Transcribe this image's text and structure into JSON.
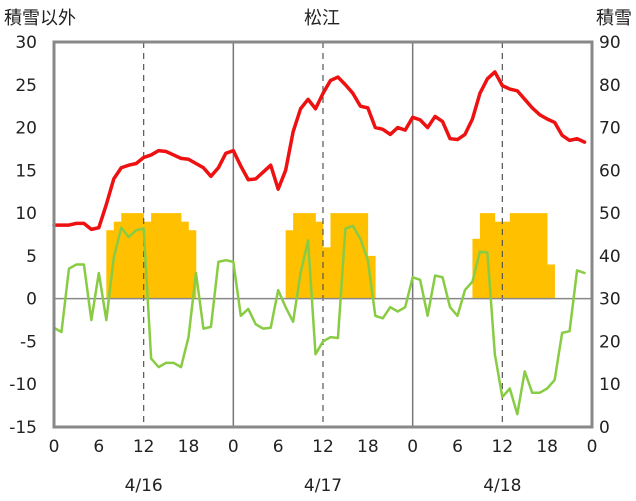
{
  "chart_data": {
    "type": "combo",
    "title": "松江",
    "left_axis_label": "積雪以外",
    "right_axis_label": "積雪",
    "left_ylim": [
      -15,
      30
    ],
    "left_ticks": [
      "30",
      "25",
      "20",
      "15",
      "10",
      "5",
      "0",
      "-5",
      "-10",
      "-15"
    ],
    "right_ylim": [
      0,
      90
    ],
    "right_ticks": [
      "90",
      "80",
      "70",
      "60",
      "50",
      "40",
      "30",
      "20",
      "10",
      "0"
    ],
    "x_hour_ticks": [
      "0",
      "6",
      "12",
      "18",
      "0",
      "6",
      "12",
      "18",
      "0",
      "6",
      "12",
      "18",
      "0"
    ],
    "day_labels": [
      "4/16",
      "4/17",
      "4/18"
    ],
    "grid": "dashed vertical at 12h, solid vertical at day boundaries",
    "colors": {
      "temperature": "#ee1111",
      "other": "#88cc44",
      "snow": "#ffc000",
      "baseline": "#7030a0",
      "frame": "#888888"
    },
    "series": [
      {
        "type": "line",
        "axis": "left",
        "color": "#ee1111",
        "x": [
          0,
          1,
          2,
          3,
          4,
          5,
          6,
          7,
          8,
          9,
          10,
          11,
          12,
          13,
          14,
          15,
          16,
          17,
          18,
          19,
          20,
          21,
          22,
          23,
          24,
          25,
          26,
          27,
          28,
          29,
          30,
          31,
          32,
          33,
          34,
          35,
          36,
          37,
          38,
          39,
          40,
          41,
          42,
          43,
          44,
          45,
          46,
          47,
          48,
          49,
          50,
          51,
          52,
          53,
          54,
          55,
          56,
          57,
          58,
          59,
          60,
          61,
          62,
          63,
          64,
          65,
          66,
          67,
          68,
          69,
          70,
          71
        ],
        "values": [
          8.6,
          8.6,
          8.6,
          8.8,
          8.8,
          8.1,
          8.3,
          11.0,
          14.0,
          15.3,
          15.6,
          15.8,
          16.5,
          16.8,
          17.3,
          17.2,
          16.8,
          16.4,
          16.3,
          15.8,
          15.3,
          14.3,
          15.3,
          17.0,
          17.3,
          15.5,
          13.9,
          14.0,
          14.8,
          15.6,
          12.8,
          15.0,
          19.5,
          22.2,
          23.3,
          22.2,
          24.0,
          25.5,
          25.9,
          25.0,
          24.0,
          22.5,
          22.3,
          20.0,
          19.8,
          19.2,
          20.0,
          19.7,
          21.2,
          20.9,
          20.0,
          21.3,
          20.7,
          18.7,
          18.6,
          19.2,
          21.0,
          24.0,
          25.7,
          26.5,
          24.9,
          24.5,
          24.3,
          23.3,
          22.3,
          21.5,
          21.0,
          20.6,
          19.1,
          18.5,
          18.7,
          18.3
        ]
      },
      {
        "type": "line",
        "axis": "left",
        "color": "#88cc44",
        "x": [
          0,
          1,
          2,
          3,
          4,
          5,
          6,
          7,
          8,
          9,
          10,
          11,
          12,
          13,
          14,
          15,
          16,
          17,
          18,
          19,
          20,
          21,
          22,
          23,
          24,
          25,
          26,
          27,
          28,
          29,
          30,
          31,
          32,
          33,
          34,
          35,
          36,
          37,
          38,
          39,
          40,
          41,
          42,
          43,
          44,
          45,
          46,
          47,
          48,
          49,
          50,
          51,
          52,
          53,
          54,
          55,
          56,
          57,
          58,
          59,
          60,
          61,
          62,
          63,
          64,
          65,
          66,
          67,
          68,
          69,
          70,
          71
        ],
        "values": [
          -3.4,
          -3.9,
          3.5,
          4.0,
          4.0,
          -2.5,
          3.0,
          -2.5,
          4.8,
          8.3,
          7.2,
          8.0,
          8.2,
          -7.0,
          -8.0,
          -7.5,
          -7.5,
          -8.0,
          -4.5,
          3.0,
          -3.5,
          -3.3,
          4.3,
          4.5,
          4.3,
          -2.0,
          -1.2,
          -3.0,
          -3.5,
          -3.4,
          1.0,
          -1.0,
          -2.7,
          3.0,
          6.8,
          -6.5,
          -5.0,
          -4.5,
          -4.6,
          8.2,
          8.5,
          7.0,
          4.5,
          -2.0,
          -2.3,
          -1.0,
          -1.5,
          -1.0,
          2.5,
          2.2,
          -2.0,
          2.7,
          2.5,
          -1.0,
          -2.0,
          1.0,
          2.0,
          5.5,
          5.4,
          -6.5,
          -11.5,
          -10.5,
          -13.5,
          -8.5,
          -11.0,
          -11.0,
          -10.5,
          -9.5,
          -4.0,
          -3.8,
          3.3,
          3.0
        ]
      },
      {
        "type": "bar",
        "axis": "right",
        "color": "#ffc000",
        "x": [
          7,
          8,
          9,
          10,
          11,
          12,
          13,
          14,
          15,
          16,
          17,
          18,
          31,
          32,
          33,
          34,
          35,
          36,
          37,
          38,
          39,
          40,
          41,
          42,
          56,
          57,
          58,
          59,
          60,
          61,
          62,
          63,
          64,
          65,
          66
        ],
        "values": [
          46,
          48,
          50,
          50,
          50,
          48,
          50,
          50,
          50,
          50,
          48,
          46,
          46,
          50,
          50,
          50,
          48,
          42,
          50,
          50,
          50,
          50,
          50,
          40,
          44,
          50,
          50,
          48,
          48,
          50,
          50,
          50,
          50,
          50,
          38
        ]
      },
      {
        "type": "line",
        "axis": "left",
        "color": "#7030a0",
        "x": [
          0,
          37
        ],
        "values": [
          -15,
          -15
        ]
      }
    ]
  }
}
